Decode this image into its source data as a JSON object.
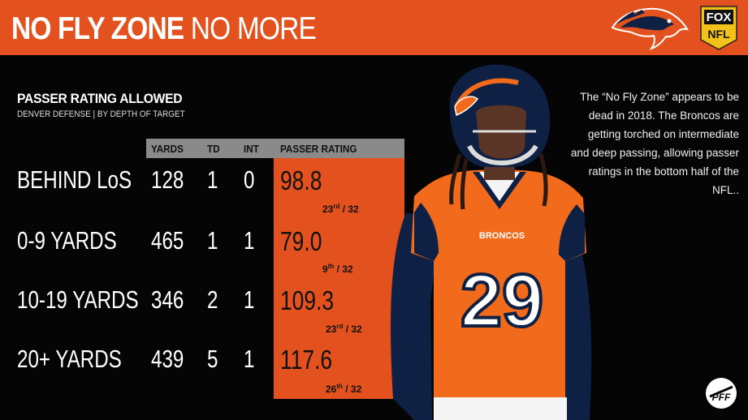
{
  "header": {
    "title_strong": "NO FLY ZONE",
    "title_light": "NO MORE",
    "bg_color": "#e3521e"
  },
  "logos": {
    "team": "broncos-logo",
    "network_top": "FOX",
    "network_bottom": "NFL",
    "watermark": "PFF"
  },
  "section": {
    "title": "PASSER RATING ALLOWED",
    "subtitle": "DENVER DEFENSE | BY DEPTH OF TARGET"
  },
  "table": {
    "columns": [
      "YARDS",
      "TD",
      "INT",
      "PASSER RATING"
    ],
    "rows": [
      {
        "label": "BEHIND LoS",
        "yards": "128",
        "td": "1",
        "int": "0",
        "rating": "98.8",
        "rank": "23",
        "rank_suffix": "rd",
        "rank_total": " / 32"
      },
      {
        "label": "0-9 YARDS",
        "yards": "465",
        "td": "1",
        "int": "1",
        "rating": "79.0",
        "rank": "9",
        "rank_suffix": "th",
        "rank_total": " / 32"
      },
      {
        "label": "10-19 YARDS",
        "yards": "346",
        "td": "2",
        "int": "1",
        "rating": "109.3",
        "rank": "23",
        "rank_suffix": "rd",
        "rank_total": " / 32"
      },
      {
        "label": "20+ YARDS",
        "yards": "439",
        "td": "5",
        "int": "1",
        "rating": "117.6",
        "rank": "26",
        "rank_suffix": "th",
        "rank_total": " / 32"
      }
    ]
  },
  "blurb": {
    "text": "The “No Fly Zone” appears to be dead in 2018. The Broncos are getting torched on intermediate and deep passing, allowing passer ratings in the bottom half of the NFL.."
  },
  "player": {
    "jersey_number": "29",
    "jersey_wordmark": "BRONCOS"
  },
  "colors": {
    "accent_orange": "#e3521e",
    "header_gray": "#8a8a8a",
    "navy": "#0e2144"
  }
}
